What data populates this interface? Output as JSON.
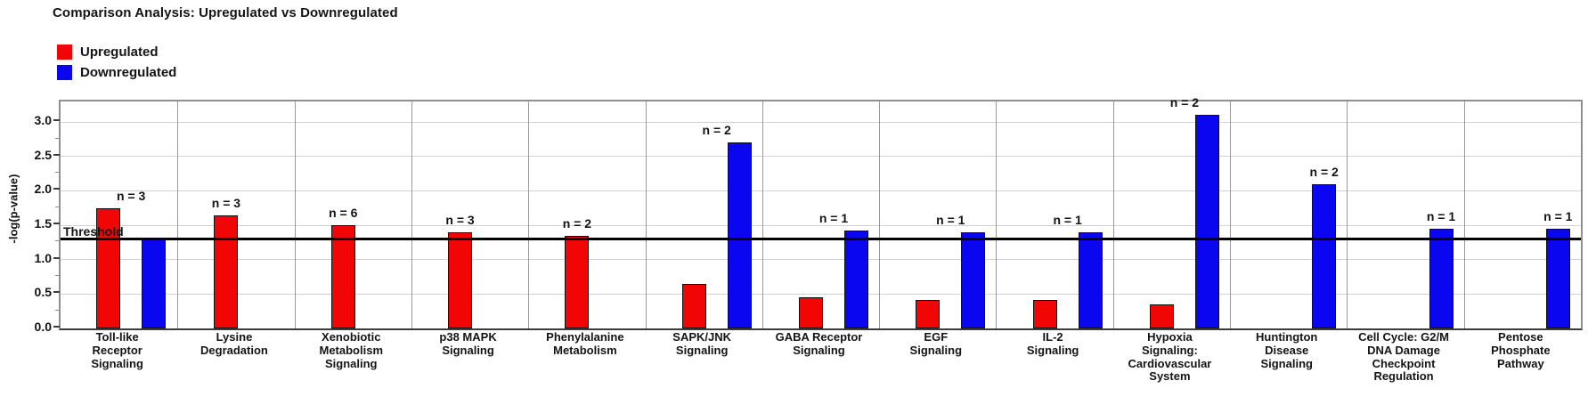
{
  "title": "Comparison Analysis: Upregulated vs Downregulated",
  "legend": [
    {
      "label": "Upregulated",
      "color": "#f20505"
    },
    {
      "label": "Downregulated",
      "color": "#0a07f0"
    }
  ],
  "threshold": {
    "label": "Threshold",
    "value": 1.3
  },
  "axis": {
    "ylabel": "-log(p-value)",
    "yticks": [
      0,
      0.5,
      1,
      1.5,
      2,
      2.5,
      3
    ],
    "ymax": 3.3
  },
  "chart_data": {
    "type": "bar",
    "title": "Comparison Analysis: Upregulated vs Downregulated",
    "xlabel": "",
    "ylabel": "-log(p-value)",
    "ylim": [
      0,
      3.3
    ],
    "grid": true,
    "legend_position": "top-left",
    "threshold": 1.3,
    "categories": [
      "Toll-like\nReceptor\nSignaling",
      "Lysine\nDegradation",
      "Xenobiotic\nMetabolism\nSignaling",
      "p38 MAPK\nSignaling",
      "Phenylalanine\nMetabolism",
      "SAPK/JNK\nSignaling",
      "GABA Receptor\nSignaling",
      "EGF\nSignaling",
      "IL-2\nSignaling",
      "Hypoxia\nSignaling:\nCardiovascular\nSystem",
      "Huntington\nDisease\nSignaling",
      "Cell Cycle: G2/M\nDNA Damage\nCheckpoint\nRegulation",
      "Pentose\nPhosphate\nPathway"
    ],
    "n_labels": [
      "n = 3",
      "n = 3",
      "n = 6",
      "n = 3",
      "n = 2",
      "n = 2",
      "n = 1",
      "n = 1",
      "n = 1",
      "n = 2",
      "n = 2",
      "n = 1",
      "n = 1"
    ],
    "series": [
      {
        "name": "Upregulated",
        "color": "#f20505",
        "values": [
          1.75,
          1.65,
          1.5,
          1.4,
          1.35,
          0.65,
          0.45,
          0.42,
          0.42,
          0.35,
          null,
          null,
          null
        ]
      },
      {
        "name": "Downregulated",
        "color": "#0a07f0",
        "values": [
          1.3,
          null,
          null,
          null,
          null,
          2.7,
          1.42,
          1.4,
          1.4,
          3.1,
          2.1,
          1.45,
          1.45
        ]
      }
    ]
  }
}
